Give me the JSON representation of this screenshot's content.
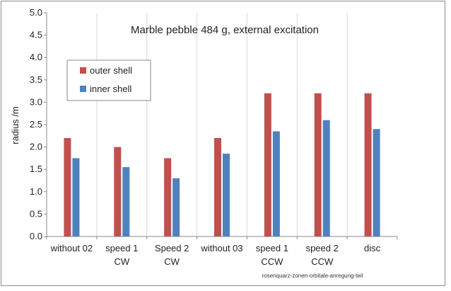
{
  "chart_data": {
    "type": "bar",
    "title": "Marble pebble 484 g, external excitation",
    "xlabel": "",
    "ylabel": "radius /m",
    "ylim": [
      0,
      5
    ],
    "yticks": [
      "0.0",
      "0.5",
      "1.0",
      "1.5",
      "2.0",
      "2.5",
      "3.0",
      "3.5",
      "4.0",
      "4.5",
      "5.0"
    ],
    "categories": [
      [
        "without 02"
      ],
      [
        "speed 1",
        "CW"
      ],
      [
        "Speed 2",
        "CW"
      ],
      [
        "without 03"
      ],
      [
        "speed 1",
        "CCW"
      ],
      [
        "speed 2",
        "CCW"
      ],
      [
        "disc"
      ]
    ],
    "series": [
      {
        "name": "outer shell",
        "color": "#c0504d",
        "values": [
          2.2,
          2.0,
          1.75,
          2.2,
          3.2,
          3.2,
          3.2
        ]
      },
      {
        "name": "inner shell",
        "color": "#4f81bd",
        "values": [
          1.75,
          1.55,
          1.3,
          1.85,
          2.35,
          2.6,
          2.4
        ]
      }
    ],
    "grid": "vertical separators",
    "legend": "top-left",
    "annotation": "rosenquarz-zonen-orbitale-anregung-teil"
  }
}
